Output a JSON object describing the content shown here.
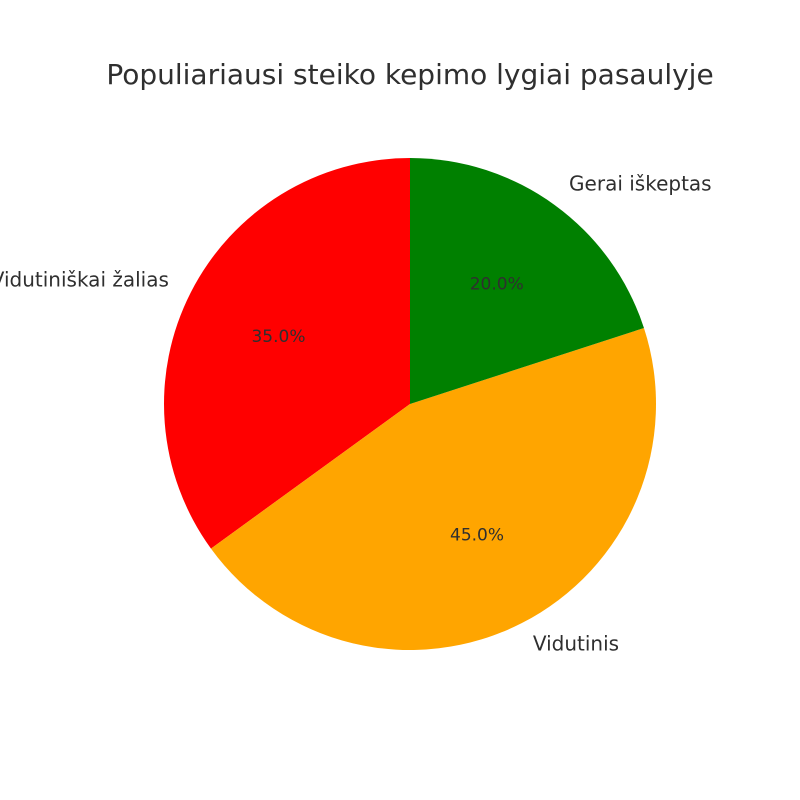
{
  "chart_data": {
    "type": "pie",
    "title": "Populiariausi steiko kepimo lygiai pasaulyje",
    "categories": [
      "Vidutiniškai žalias",
      "Vidutinis",
      "Gerai iškeptas"
    ],
    "values": [
      35,
      45,
      20
    ],
    "percent_labels": [
      "35.0%",
      "45.0%",
      "20.0%"
    ],
    "colors": [
      "#ff0000",
      "#ffa500",
      "#008000"
    ],
    "start_angle_deg": 90,
    "direction": "counterclockwise"
  }
}
